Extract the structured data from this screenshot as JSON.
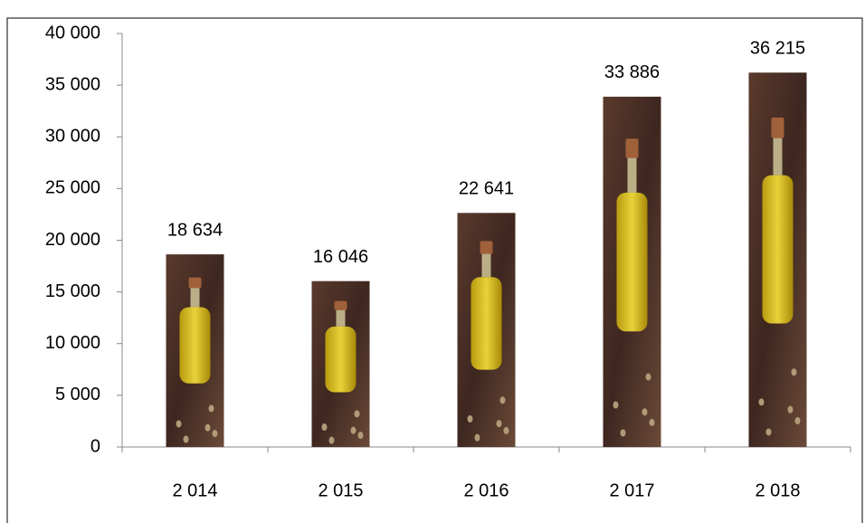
{
  "chart_data": {
    "type": "bar",
    "categories": [
      "2 014",
      "2 015",
      "2 016",
      "2 017",
      "2 018"
    ],
    "values": [
      18634,
      16046,
      22641,
      33886,
      36215
    ],
    "value_labels": [
      "18 634",
      "16 046",
      "22 641",
      "33 886",
      "36 215"
    ],
    "ylim": [
      0,
      40000
    ],
    "yticks": [
      0,
      {
        "value": 5000,
        "label": "5 000"
      },
      {
        "value": 10000,
        "label": "10 000"
      },
      {
        "value": 15000,
        "label": "15 000"
      },
      {
        "value": 20000,
        "label": "20 000"
      },
      {
        "value": 25000,
        "label": "25 000"
      },
      {
        "value": 30000,
        "label": "30 000"
      },
      {
        "value": 35000,
        "label": "35 000"
      },
      {
        "value": 40000,
        "label": "40 000"
      }
    ],
    "grid": false
  }
}
